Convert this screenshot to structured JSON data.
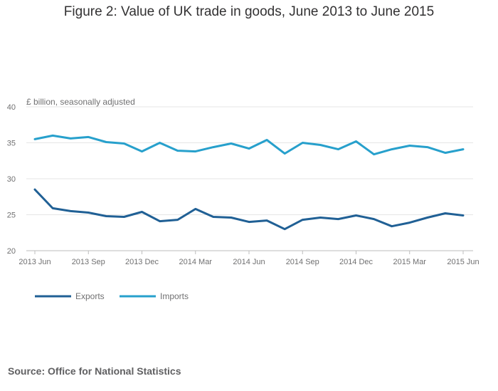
{
  "chart_data": {
    "type": "line",
    "title": "Figure 2: Value of UK trade in goods, June 2013 to June 2015",
    "ylabel": "£ billion, seasonally adjusted",
    "xlabel": "",
    "ylim": [
      20,
      40
    ],
    "yticks": [
      20,
      25,
      30,
      35,
      40
    ],
    "x": [
      "2013 Jun",
      "2013 Jul",
      "2013 Aug",
      "2013 Sep",
      "2013 Oct",
      "2013 Nov",
      "2013 Dec",
      "2014 Jan",
      "2014 Feb",
      "2014 Mar",
      "2014 Apr",
      "2014 May",
      "2014 Jun",
      "2014 Jul",
      "2014 Aug",
      "2014 Sep",
      "2014 Oct",
      "2014 Nov",
      "2014 Dec",
      "2015 Jan",
      "2015 Feb",
      "2015 Mar",
      "2015 Apr",
      "2015 May",
      "2015 Jun"
    ],
    "xtick_labels": [
      "2013 Jun",
      "2013 Sep",
      "2013 Dec",
      "2014 Mar",
      "2014 Jun",
      "2014 Sep",
      "2014 Dec",
      "2015 Mar",
      "2015 Jun"
    ],
    "grid": true,
    "legend_position": "bottom-left",
    "series": [
      {
        "name": "Exports",
        "color": "#206095",
        "values": [
          28.5,
          25.9,
          25.5,
          25.3,
          24.8,
          24.7,
          25.4,
          24.1,
          24.3,
          25.8,
          24.7,
          24.6,
          24.0,
          24.2,
          23.0,
          24.3,
          24.6,
          24.4,
          24.9,
          24.4,
          23.4,
          23.9,
          24.6,
          25.2,
          24.9
        ]
      },
      {
        "name": "Imports",
        "color": "#27a0cc",
        "values": [
          35.5,
          36.0,
          35.6,
          35.8,
          35.1,
          34.9,
          33.8,
          35.0,
          33.9,
          33.8,
          34.4,
          34.9,
          34.2,
          35.4,
          33.5,
          35.0,
          34.7,
          34.1,
          35.2,
          33.4,
          34.1,
          34.6,
          34.4,
          33.6,
          34.1
        ]
      }
    ]
  },
  "source": "Source: Office for National Statistics"
}
